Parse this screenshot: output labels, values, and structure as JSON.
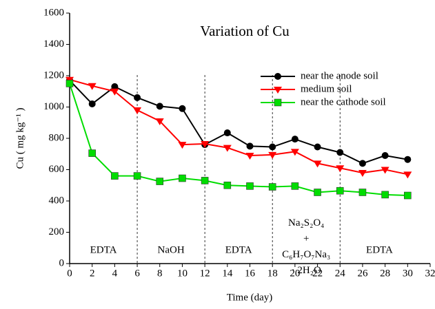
{
  "chart_data": {
    "type": "line",
    "title": "Variation of Cu",
    "xlabel": "Time (day)",
    "ylabel": "Cu ( mg kg⁻¹ )",
    "x": [
      0,
      2,
      4,
      6,
      8,
      10,
      12,
      14,
      16,
      18,
      20,
      22,
      24,
      26,
      28,
      30
    ],
    "series": [
      {
        "name": "near the anode soil",
        "color": "#000000",
        "marker": "circle",
        "values": [
          1170,
          1020,
          1130,
          1060,
          1005,
          990,
          760,
          835,
          750,
          745,
          795,
          745,
          710,
          640,
          690,
          665
        ]
      },
      {
        "name": "medium soil",
        "color": "#ff0000",
        "marker": "triangle-down",
        "values": [
          1175,
          1135,
          1100,
          980,
          910,
          760,
          765,
          740,
          690,
          695,
          715,
          640,
          610,
          580,
          600,
          570
        ]
      },
      {
        "name": "near the cathode soil",
        "color": "#00dd00",
        "marker": "square",
        "values": [
          1150,
          705,
          560,
          560,
          525,
          545,
          530,
          500,
          495,
          490,
          495,
          455,
          465,
          455,
          440,
          435
        ]
      }
    ],
    "xlim": [
      0,
      32
    ],
    "xticks": [
      0,
      2,
      4,
      6,
      8,
      10,
      12,
      14,
      16,
      18,
      20,
      22,
      24,
      26,
      28,
      30,
      32
    ],
    "ylim": [
      0,
      1600
    ],
    "yticks": [
      0,
      200,
      400,
      600,
      800,
      1000,
      1200,
      1400,
      1600
    ],
    "dividers": [
      6,
      12,
      18,
      24
    ],
    "annotations": [
      [
        "EDTA"
      ],
      [
        "NaOH"
      ],
      [
        "EDTA"
      ],
      [
        "Na₂S₂O₄",
        "+",
        "C₆H₇O₇Na₃",
        "· 2H₂O"
      ],
      [
        "EDTA"
      ]
    ],
    "legend": "upper right"
  }
}
